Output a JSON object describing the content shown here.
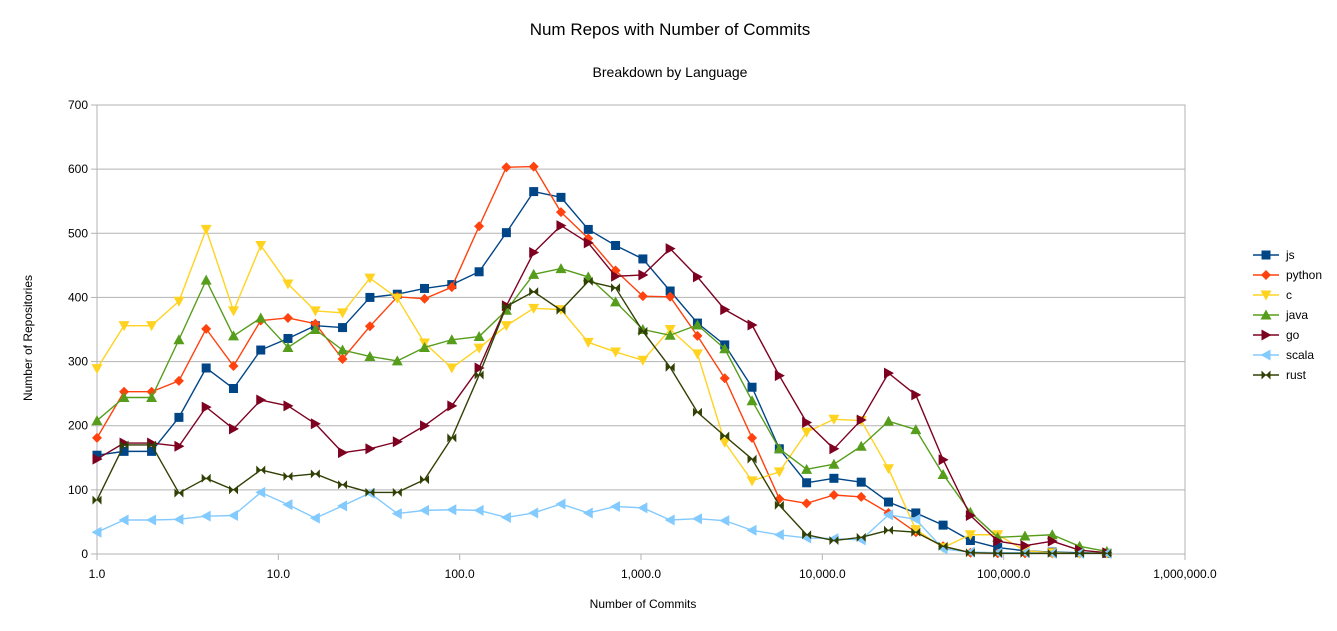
{
  "chart_data": {
    "type": "line",
    "title": "Num Repos with Number of Commits",
    "subtitle": "Breakdown by Language",
    "xlabel": "Number of Commits",
    "ylabel": "Number of Repositories",
    "x_scale": "log",
    "xlim": [
      1,
      1000000
    ],
    "ylim": [
      0,
      700
    ],
    "x_ticks": [
      {
        "value": 1,
        "label": "1.0"
      },
      {
        "value": 10,
        "label": "10.0"
      },
      {
        "value": 100,
        "label": "100.0"
      },
      {
        "value": 1000,
        "label": "1,000.0"
      },
      {
        "value": 10000,
        "label": "10,000.0"
      },
      {
        "value": 100000,
        "label": "100,000.0"
      },
      {
        "value": 1000000,
        "label": "1,000,000.0"
      }
    ],
    "y_ticks": [
      0,
      100,
      200,
      300,
      400,
      500,
      600,
      700
    ],
    "grid": {
      "horizontal": true,
      "vertical": false
    },
    "legend_position": "right",
    "x": [
      1,
      1.41,
      2,
      2.83,
      4,
      5.66,
      8,
      11.3,
      16,
      22.6,
      32,
      45.3,
      64,
      90.5,
      128,
      181,
      256,
      362,
      512,
      724,
      1024,
      1448,
      2048,
      2896,
      4096,
      5793,
      8192,
      11585,
      16384,
      23170,
      32768,
      46341,
      65536,
      92682,
      131072,
      185364,
      262144,
      370728
    ],
    "series": [
      {
        "name": "js",
        "color": "#004586",
        "marker": "square",
        "values": [
          154,
          160,
          160,
          213,
          290,
          258,
          318,
          336,
          356,
          353,
          400,
          405,
          414,
          420,
          440,
          501,
          565,
          556,
          506,
          481,
          460,
          410,
          360,
          326,
          260,
          164,
          111,
          118,
          112,
          81,
          64,
          45,
          21,
          10,
          5,
          3,
          2,
          1
        ]
      },
      {
        "name": "python",
        "color": "#ff420e",
        "marker": "diamond",
        "values": [
          181,
          253,
          253,
          270,
          351,
          293,
          364,
          368,
          359,
          304,
          355,
          401,
          398,
          416,
          511,
          603,
          604,
          533,
          492,
          442,
          402,
          401,
          340,
          274,
          181,
          86,
          79,
          92,
          89,
          64,
          34,
          12,
          2,
          1,
          1,
          1,
          1,
          1
        ]
      },
      {
        "name": "c",
        "color": "#ffd320",
        "marker": "triangle-down",
        "values": [
          289,
          356,
          356,
          394,
          506,
          379,
          481,
          421,
          379,
          376,
          430,
          399,
          329,
          290,
          321,
          356,
          383,
          381,
          330,
          315,
          302,
          350,
          312,
          174,
          114,
          128,
          190,
          210,
          208,
          133,
          38,
          10,
          30,
          30,
          5,
          2,
          1,
          1
        ]
      },
      {
        "name": "java",
        "color": "#579d1c",
        "marker": "triangle-up",
        "values": [
          208,
          244,
          244,
          334,
          427,
          340,
          368,
          322,
          350,
          318,
          308,
          301,
          322,
          334,
          339,
          380,
          436,
          445,
          432,
          393,
          350,
          341,
          357,
          320,
          239,
          164,
          132,
          140,
          168,
          207,
          194,
          124,
          65,
          26,
          28,
          30,
          12,
          4
        ]
      },
      {
        "name": "go",
        "color": "#7e0021",
        "marker": "triangle-right",
        "values": [
          148,
          173,
          173,
          168,
          229,
          195,
          240,
          231,
          203,
          158,
          164,
          175,
          200,
          231,
          290,
          387,
          470,
          512,
          485,
          433,
          435,
          476,
          432,
          381,
          357,
          278,
          205,
          164,
          209,
          282,
          248,
          147,
          60,
          20,
          13,
          20,
          6,
          2
        ]
      },
      {
        "name": "scala",
        "color": "#83caff",
        "marker": "triangle-left",
        "values": [
          34,
          53,
          53,
          54,
          59,
          60,
          96,
          77,
          56,
          75,
          95,
          63,
          68,
          69,
          68,
          57,
          64,
          78,
          64,
          74,
          72,
          53,
          55,
          52,
          37,
          30,
          25,
          24,
          22,
          61,
          54,
          8,
          3,
          2,
          2,
          1,
          1,
          1
        ]
      },
      {
        "name": "rust",
        "color": "#314004",
        "marker": "bowtie",
        "values": [
          84,
          170,
          170,
          95,
          118,
          100,
          131,
          121,
          125,
          108,
          96,
          96,
          116,
          181,
          279,
          386,
          409,
          380,
          425,
          415,
          347,
          291,
          221,
          184,
          148,
          76,
          30,
          21,
          26,
          37,
          34,
          12,
          2,
          1,
          1,
          1,
          1,
          1
        ]
      }
    ]
  }
}
